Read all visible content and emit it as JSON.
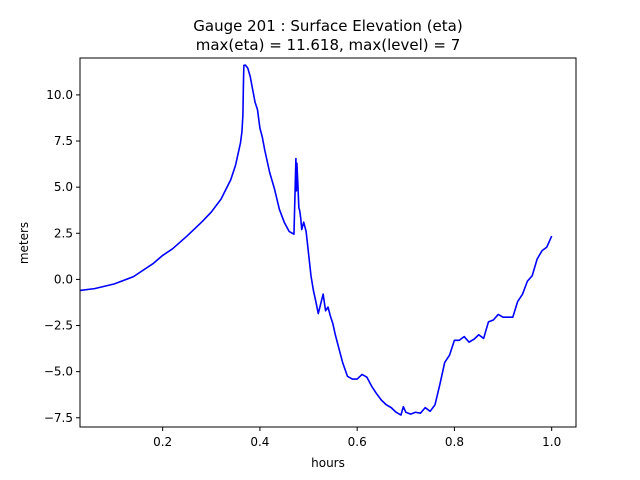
{
  "chart_data": {
    "type": "line",
    "title_line1": "Gauge 201 : Surface Elevation (eta)",
    "title_line2": "max(eta) =  11.618,    max(level) = 7",
    "xlabel": "hours",
    "ylabel": "meters",
    "xlim": [
      0.03,
      1.05
    ],
    "ylim": [
      -8.0,
      12.0
    ],
    "xticks": [
      0.2,
      0.4,
      0.6,
      0.8,
      1.0
    ],
    "xtick_labels": [
      "0.2",
      "0.4",
      "0.6",
      "0.8",
      "1.0"
    ],
    "yticks": [
      -7.5,
      -5.0,
      -2.5,
      0.0,
      2.5,
      5.0,
      7.5,
      10.0
    ],
    "ytick_labels": [
      "−7.5",
      "−5.0",
      "−2.5",
      "0.0",
      "2.5",
      "5.0",
      "7.5",
      "10.0"
    ],
    "grid": false,
    "series": [
      {
        "color": "#0000ff",
        "x": [
          0.03,
          0.06,
          0.1,
          0.14,
          0.18,
          0.2,
          0.22,
          0.25,
          0.28,
          0.3,
          0.32,
          0.34,
          0.35,
          0.355,
          0.36,
          0.363,
          0.365,
          0.366,
          0.367,
          0.37,
          0.375,
          0.38,
          0.385,
          0.39,
          0.395,
          0.4,
          0.405,
          0.41,
          0.42,
          0.43,
          0.44,
          0.45,
          0.46,
          0.47,
          0.474,
          0.475,
          0.476,
          0.478,
          0.48,
          0.482,
          0.484,
          0.486,
          0.49,
          0.495,
          0.5,
          0.505,
          0.51,
          0.515,
          0.52,
          0.53,
          0.535,
          0.54,
          0.545,
          0.55,
          0.555,
          0.56,
          0.57,
          0.58,
          0.59,
          0.6,
          0.61,
          0.62,
          0.63,
          0.64,
          0.65,
          0.66,
          0.67,
          0.68,
          0.69,
          0.695,
          0.7,
          0.71,
          0.72,
          0.73,
          0.74,
          0.75,
          0.76,
          0.77,
          0.78,
          0.79,
          0.8,
          0.81,
          0.82,
          0.83,
          0.84,
          0.85,
          0.86,
          0.87,
          0.88,
          0.89,
          0.9,
          0.91,
          0.92,
          0.93,
          0.94,
          0.95,
          0.96,
          0.97,
          0.98,
          0.99,
          1.0
        ],
        "y": [
          -0.6,
          -0.5,
          -0.25,
          0.15,
          0.85,
          1.3,
          1.65,
          2.35,
          3.1,
          3.65,
          4.35,
          5.4,
          6.2,
          6.8,
          7.4,
          8.0,
          8.9,
          10.5,
          11.6,
          11.618,
          11.45,
          11.0,
          10.3,
          9.6,
          9.2,
          8.2,
          7.7,
          7.0,
          5.8,
          4.9,
          3.8,
          3.1,
          2.6,
          2.45,
          6.55,
          4.8,
          6.3,
          5.2,
          3.9,
          3.7,
          3.3,
          2.7,
          3.1,
          2.6,
          1.4,
          0.2,
          -0.6,
          -1.2,
          -1.85,
          -0.8,
          -1.7,
          -1.5,
          -2.0,
          -2.4,
          -3.0,
          -3.5,
          -4.5,
          -5.25,
          -5.4,
          -5.4,
          -5.15,
          -5.3,
          -5.8,
          -6.2,
          -6.55,
          -6.8,
          -6.95,
          -7.2,
          -7.35,
          -6.9,
          -7.2,
          -7.3,
          -7.2,
          -7.25,
          -6.95,
          -7.15,
          -6.8,
          -5.7,
          -4.5,
          -4.1,
          -3.3,
          -3.3,
          -3.1,
          -3.4,
          -3.25,
          -3.0,
          -3.2,
          -2.3,
          -2.2,
          -1.9,
          -2.05,
          -2.05,
          -2.05,
          -1.2,
          -0.8,
          -0.1,
          0.2,
          1.1,
          1.55,
          1.75,
          2.35
        ]
      }
    ]
  }
}
